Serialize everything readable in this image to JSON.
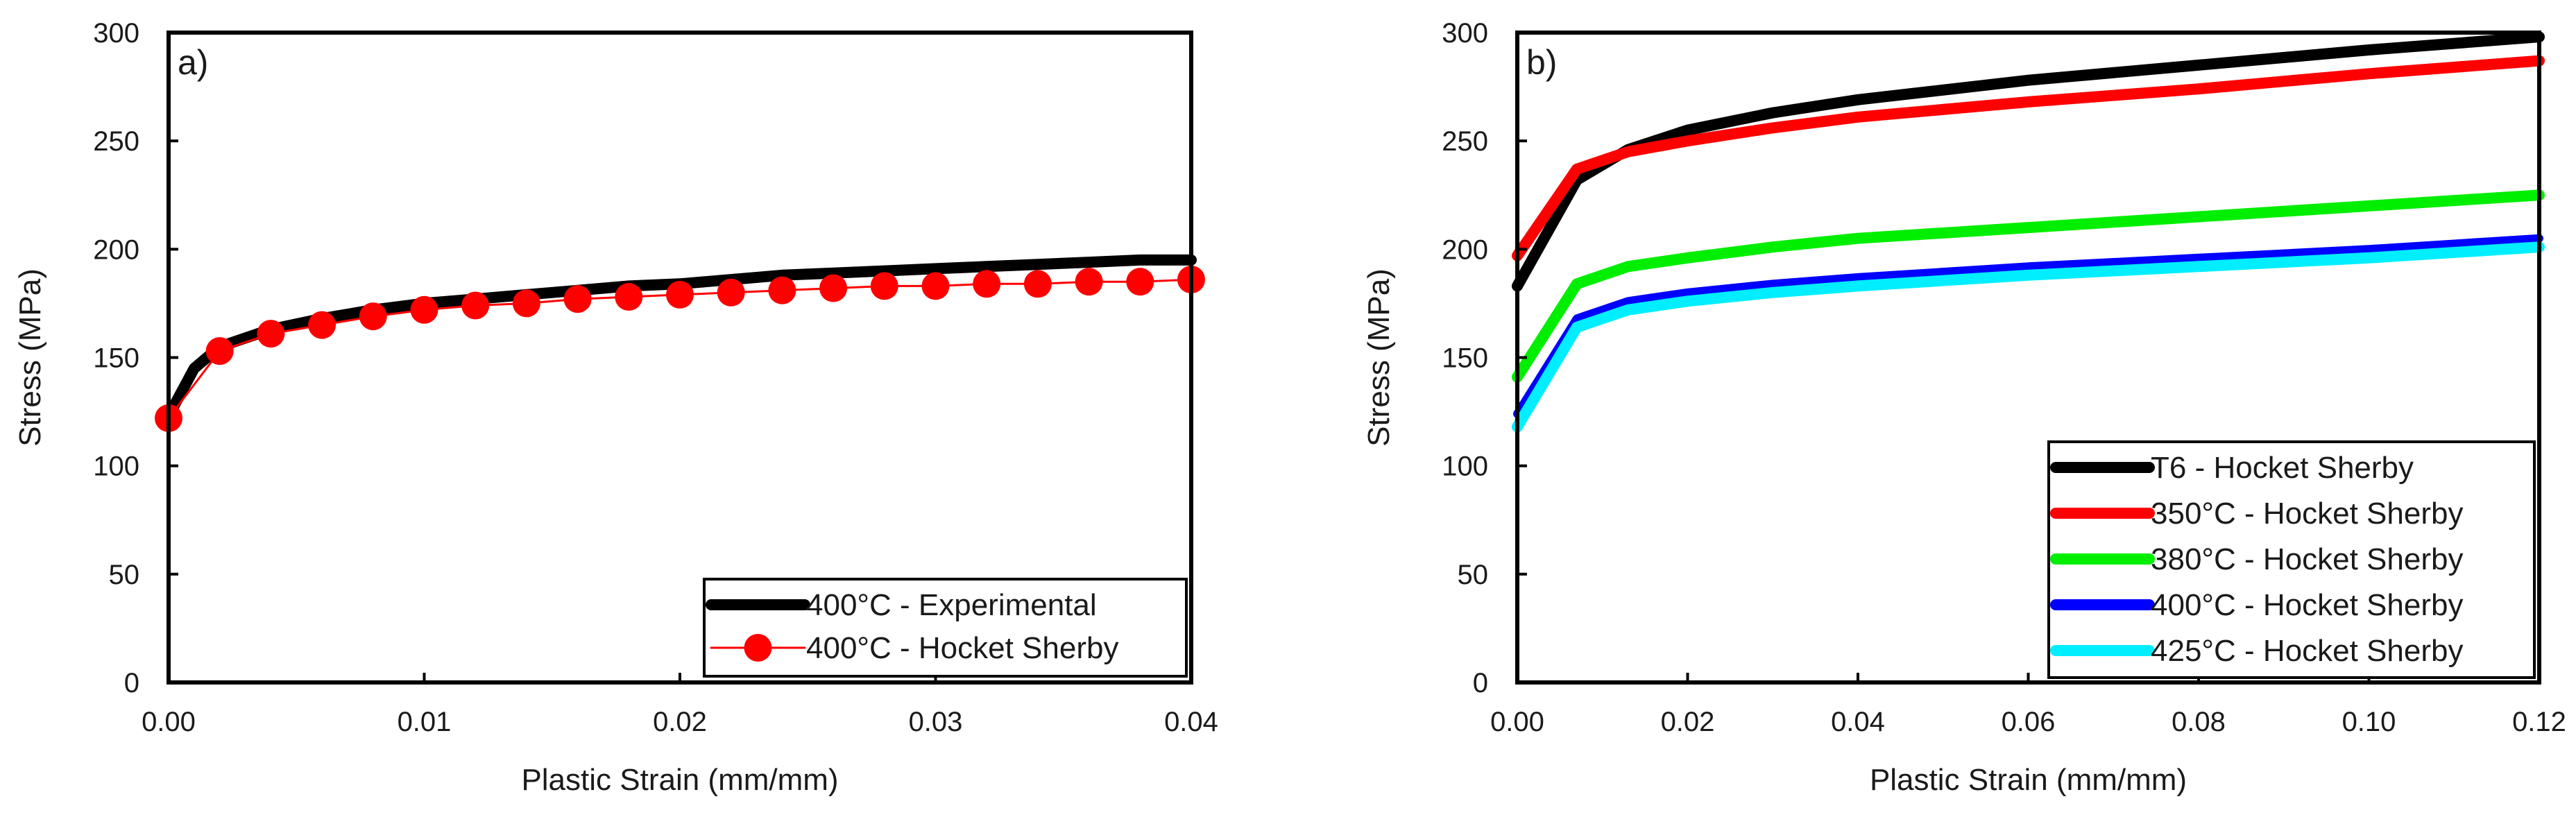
{
  "chart_data": [
    {
      "type": "line",
      "panel_label": "a)",
      "xlabel": "Plastic Strain (mm/mm)",
      "ylabel": "Stress (MPa)",
      "xlim": [
        0,
        0.04
      ],
      "ylim": [
        0,
        300
      ],
      "xticks": [
        "0.00",
        "0.01",
        "0.02",
        "0.03",
        "0.04"
      ],
      "yticks": [
        "0",
        "50",
        "100",
        "150",
        "200",
        "250",
        "300"
      ],
      "grid": false,
      "legend_position": "bottom-right",
      "series": [
        {
          "name": "400°C - Experimental",
          "color": "#000000",
          "style": "thick-line",
          "x": [
            0.0,
            0.001,
            0.002,
            0.004,
            0.006,
            0.008,
            0.01,
            0.012,
            0.014,
            0.016,
            0.018,
            0.02,
            0.022,
            0.024,
            0.026,
            0.028,
            0.03,
            0.032,
            0.034,
            0.036,
            0.038,
            0.04
          ],
          "y": [
            123,
            145,
            155,
            163,
            168,
            172,
            175,
            177,
            179,
            181,
            183,
            184,
            186,
            188,
            189,
            190,
            191,
            192,
            193,
            194,
            195,
            195
          ]
        },
        {
          "name": "400°C - Hocket Sherby",
          "color": "#ff0000",
          "style": "line-markers",
          "x": [
            0.0,
            0.002,
            0.004,
            0.006,
            0.008,
            0.01,
            0.012,
            0.014,
            0.016,
            0.018,
            0.02,
            0.022,
            0.024,
            0.026,
            0.028,
            0.03,
            0.032,
            0.034,
            0.036,
            0.038,
            0.04
          ],
          "y": [
            122,
            153,
            161,
            165,
            169,
            172,
            174,
            175,
            177,
            178,
            179,
            180,
            181,
            182,
            183,
            183,
            184,
            184,
            185,
            185,
            186
          ]
        }
      ]
    },
    {
      "type": "line",
      "panel_label": "b)",
      "xlabel": "Plastic Strain (mm/mm)",
      "ylabel": "Stress (MPa)",
      "xlim": [
        0,
        0.12
      ],
      "ylim": [
        0,
        300
      ],
      "xticks": [
        "0.00",
        "0.02",
        "0.04",
        "0.06",
        "0.08",
        "0.10",
        "0.12"
      ],
      "yticks": [
        "0",
        "50",
        "100",
        "150",
        "200",
        "250",
        "300"
      ],
      "grid": false,
      "legend_position": "bottom-right",
      "series": [
        {
          "name": "T6 - Hocket Sherby",
          "color": "#000000",
          "x": [
            0.0,
            0.007,
            0.013,
            0.02,
            0.03,
            0.04,
            0.06,
            0.08,
            0.1,
            0.12
          ],
          "y": [
            183,
            232,
            246,
            255,
            263,
            269,
            278,
            285,
            292,
            298
          ]
        },
        {
          "name": "350°C - Hocket Sherby",
          "color": "#ff0000",
          "x": [
            0.0,
            0.007,
            0.013,
            0.02,
            0.03,
            0.04,
            0.06,
            0.08,
            0.1,
            0.12
          ],
          "y": [
            197,
            237,
            245,
            250,
            256,
            261,
            268,
            274,
            281,
            287
          ]
        },
        {
          "name": "380°C - Hocket Sherby",
          "color": "#00ee00",
          "x": [
            0.0,
            0.007,
            0.013,
            0.02,
            0.03,
            0.04,
            0.06,
            0.08,
            0.1,
            0.12
          ],
          "y": [
            141,
            184,
            192,
            196,
            201,
            205,
            210,
            215,
            220,
            225
          ]
        },
        {
          "name": "400°C - Hocket Sherby",
          "color": "#0000ff",
          "x": [
            0.0,
            0.007,
            0.013,
            0.02,
            0.03,
            0.04,
            0.06,
            0.08,
            0.1,
            0.12
          ],
          "y": [
            124,
            168,
            176,
            180,
            184,
            187,
            192,
            196,
            200,
            205
          ]
        },
        {
          "name": "425°C - Hocket Sherby",
          "color": "#00eeff",
          "x": [
            0.0,
            0.007,
            0.013,
            0.02,
            0.03,
            0.04,
            0.06,
            0.08,
            0.1,
            0.12
          ],
          "y": [
            118,
            164,
            172,
            176,
            180,
            183,
            188,
            192,
            196,
            201
          ]
        }
      ]
    }
  ]
}
